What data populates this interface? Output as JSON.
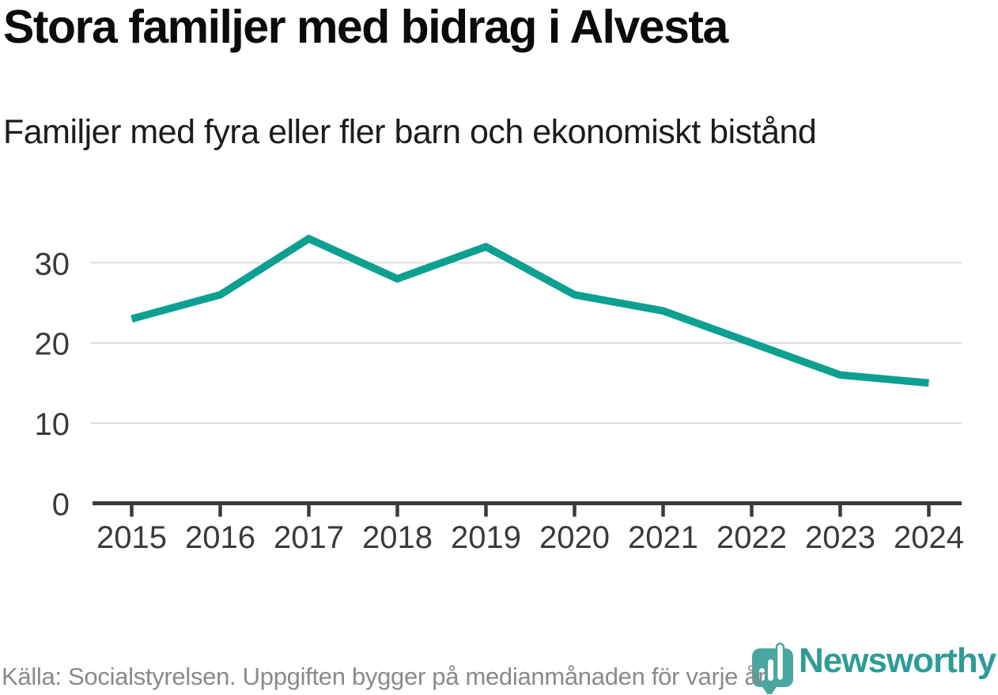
{
  "header": {
    "title": "Stora familjer med bidrag i Alvesta",
    "subtitle": "Familjer med fyra eller fler barn och ekonomiskt bistånd"
  },
  "footer": {
    "source": "Källa: Socialstyrelsen. Uppgiften bygger på medianmånaden för varje år"
  },
  "logo": {
    "name": "Newsworthy"
  },
  "colors": {
    "line": "#0DA091",
    "axis": "#3A3A3A",
    "grid": "#DDDDDD",
    "labels": "#3A3A3A",
    "footer_text": "#8A8A8A",
    "logo_badge": "#4AA79F",
    "logo_text": "#2F9C95",
    "title_text": "#0B0B0B"
  },
  "chart_data": {
    "type": "line",
    "title": "Stora familjer med bidrag i Alvesta",
    "subtitle": "Familjer med fyra eller fler barn och ekonomiskt bistånd",
    "x": [
      2015,
      2016,
      2017,
      2018,
      2019,
      2020,
      2021,
      2022,
      2023,
      2024
    ],
    "values": [
      23,
      26,
      33,
      28,
      32,
      26,
      24,
      20,
      16,
      15
    ],
    "series": [
      {
        "name": "Familjer med fyra eller fler barn och ekonomiskt bistånd",
        "values": [
          23,
          26,
          33,
          28,
          32,
          26,
          24,
          20,
          16,
          15
        ]
      }
    ],
    "xlabel": "",
    "ylabel": "",
    "ylim": [
      0,
      35
    ],
    "yticks": [
      0,
      10,
      20,
      30
    ],
    "grid": "horizontal",
    "legend": "none"
  }
}
